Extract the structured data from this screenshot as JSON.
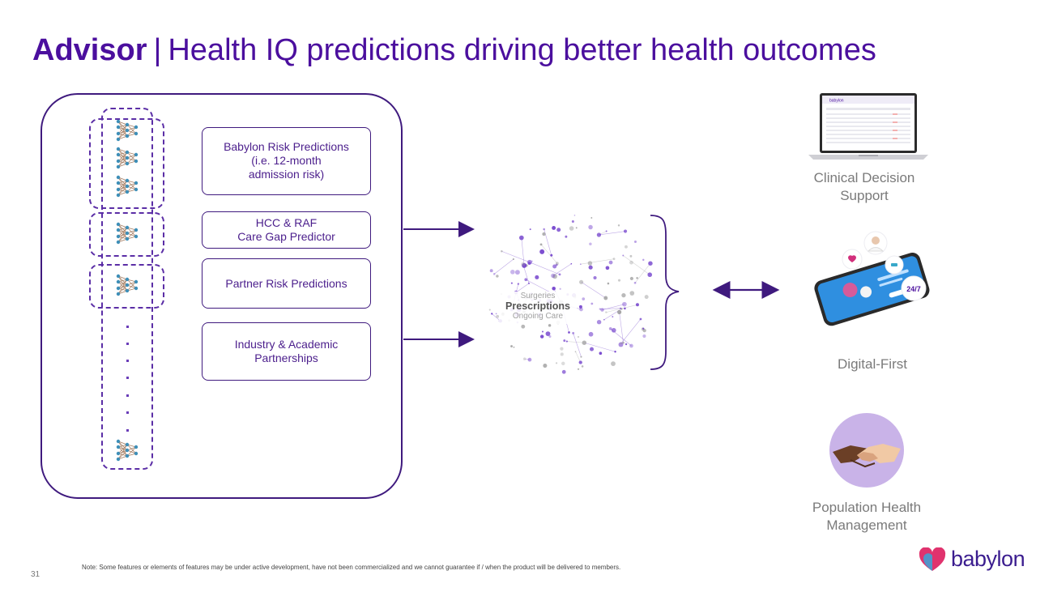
{
  "title": {
    "bold": "Advisor",
    "separator": "|",
    "rest": "Health IQ predictions driving better health outcomes"
  },
  "predictions": [
    {
      "line1": "Babylon Risk Predictions",
      "line2": "(i.e. 12-month",
      "line3": "admission risk)"
    },
    {
      "line1": "HCC & RAF",
      "line2": "Care Gap Predictor"
    },
    {
      "line1": "Partner Risk Predictions"
    },
    {
      "line1": "Industry & Academic",
      "line2": "Partnerships"
    }
  ],
  "cloud": {
    "top_faint": "Surgeries",
    "main": "Prescriptions",
    "bottom_faint": "Ongoing Care"
  },
  "outputs": [
    {
      "line1": "Clinical Decision",
      "line2": "Support"
    },
    {
      "line1": "Digital-First",
      "badge": "24/7"
    },
    {
      "line1": "Population Health",
      "line2": "Management"
    }
  ],
  "laptop_header": "babylon",
  "footer": {
    "note": "Note: Some features or elements of features may be under active development, have not been commercialized and we cannot guarantee if / when the product will be delivered to members.",
    "page_number": "31",
    "logo_text": "babylon"
  },
  "colors": {
    "brand_purple": "#4b0f9e",
    "frame": "#3f1a7e",
    "heart_pink": "#e0336e",
    "heart_blue": "#3aa6d8"
  }
}
